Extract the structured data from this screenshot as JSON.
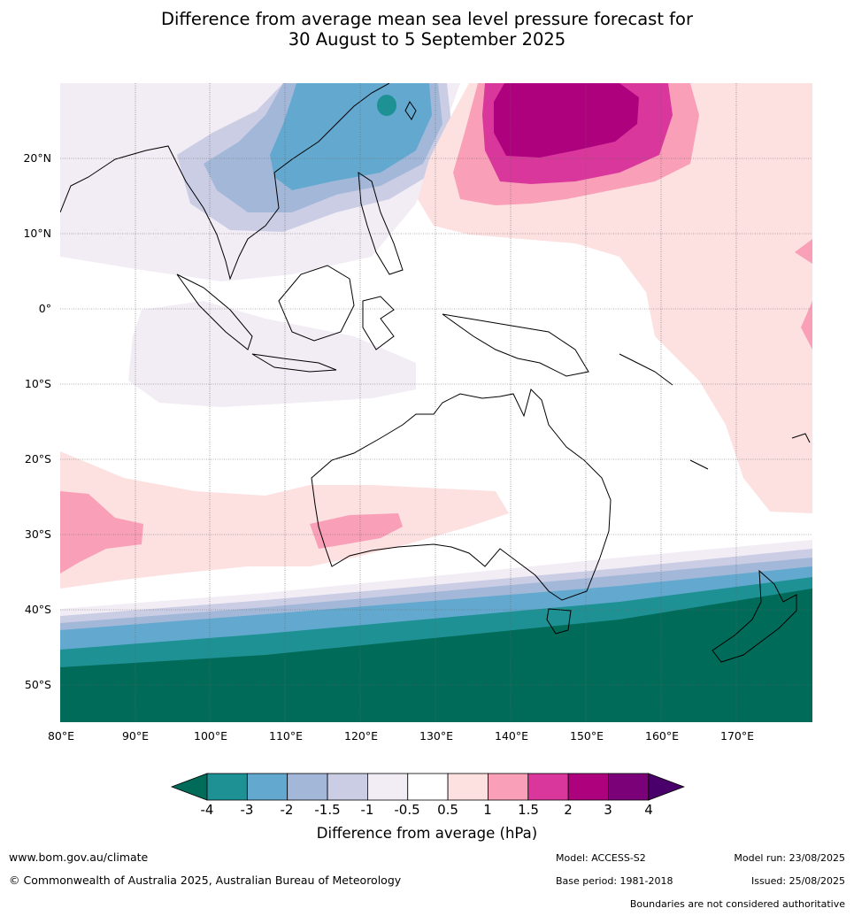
{
  "title": {
    "line1": "Difference from average mean sea level pressure forecast for",
    "line2": "30 August to 5 September 2025"
  },
  "map": {
    "lat_labels": [
      "20°N",
      "10°N",
      "0°",
      "10°S",
      "20°S",
      "30°S",
      "40°S",
      "50°S"
    ],
    "lon_labels": [
      "80°E",
      "90°E",
      "100°E",
      "110°E",
      "120°E",
      "130°E",
      "140°E",
      "150°E",
      "160°E",
      "170°E"
    ],
    "gridlines": true
  },
  "legend": {
    "title": "Difference from average (hPa)",
    "tick_labels": [
      "-4",
      "-3",
      "-2",
      "-1.5",
      "-1",
      "-0.5",
      "0.5",
      "1",
      "1.5",
      "2",
      "3",
      "4"
    ],
    "colors": [
      "#006b58",
      "#1e9194",
      "#63a9cf",
      "#a3b8d8",
      "#cbcde5",
      "#f2ecf5",
      "#ffffff",
      "#fde0e0",
      "#f99fb8",
      "#d9379b",
      "#ae017e",
      "#7a0177",
      "#49006a"
    ]
  },
  "footer": {
    "website": "www.bom.gov.au/climate",
    "copyright": "© Commonwealth of Australia 2025, Australian Bureau of Meteorology",
    "model": "Model: ACCESS-S2",
    "base_period": "Base period: 1981-2018",
    "model_run": "Model run: 23/08/2025",
    "issued": "Issued: 25/08/2025",
    "disclaimer": "Boundaries are not considered authoritative"
  }
}
